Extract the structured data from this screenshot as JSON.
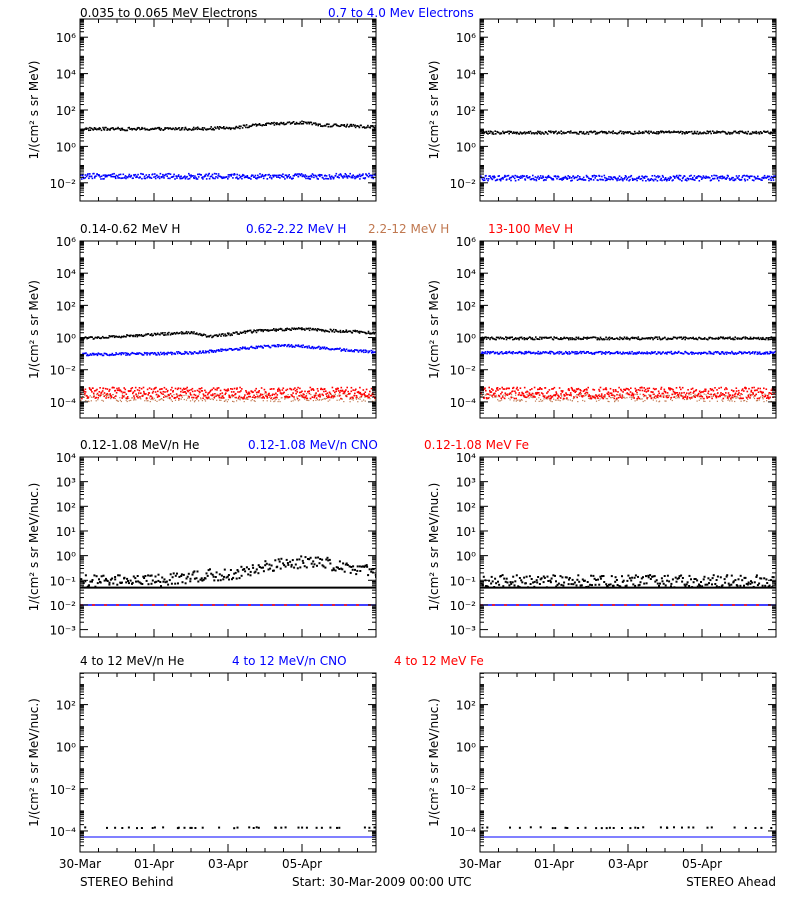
{
  "colors": {
    "black": "#000000",
    "blue": "#0000ff",
    "tan": "#c07850",
    "red": "#ff0000"
  },
  "footer": {
    "left_label": "STEREO Behind",
    "center_label": "Start: 30-Mar-2009 00:00 UTC",
    "right_label": "STEREO Ahead"
  },
  "x_tick_labels": [
    "30-Mar",
    "01-Apr",
    "03-Apr",
    "05-Apr"
  ],
  "chart_data": [
    {
      "type": "scatter",
      "row": 1,
      "spacecraft": "STEREO Behind",
      "ylabel": "1/(cm² s sr MeV)",
      "yscale": "log",
      "ylim_log10": [
        -3,
        7
      ],
      "yticks": [
        "10⁻²",
        "10⁰",
        "10²",
        "10⁴",
        "10⁶"
      ],
      "ytick_exp": [
        -2,
        0,
        2,
        4,
        6
      ],
      "legend": [
        {
          "name": "0.035 to 0.065 MeV Electrons",
          "color": "#000000"
        },
        {
          "name": "0.7 to 4.0 Mev Electrons",
          "color": "#0000ff"
        }
      ],
      "x_days": [
        0,
        8
      ],
      "x_tick_days": [
        0,
        2,
        4,
        6
      ],
      "series": [
        {
          "name": "0.035 to 0.065 MeV Electrons",
          "color": "#000000",
          "x": [
            0,
            1,
            2,
            3,
            4,
            4.5,
            5,
            5.5,
            6,
            6.5,
            7,
            8
          ],
          "log10_y": [
            1.0,
            1.0,
            1.0,
            1.02,
            1.05,
            1.15,
            1.25,
            1.3,
            1.35,
            1.2,
            1.2,
            1.1
          ]
        },
        {
          "name": "0.7 to 4.0 Mev Electrons",
          "color": "#0000ff",
          "x": [
            0,
            4,
            8
          ],
          "log10_y": [
            -1.6,
            -1.6,
            -1.6
          ]
        }
      ]
    },
    {
      "type": "scatter",
      "row": 1,
      "spacecraft": "STEREO Ahead",
      "ylabel": "1/(cm² s sr MeV)",
      "yscale": "log",
      "ylim_log10": [
        -3,
        7
      ],
      "yticks": [
        "10⁻²",
        "10⁰",
        "10²",
        "10⁴",
        "10⁶"
      ],
      "ytick_exp": [
        -2,
        0,
        2,
        4,
        6
      ],
      "x_days": [
        0,
        8
      ],
      "x_tick_days": [
        0,
        2,
        4,
        6
      ],
      "series": [
        {
          "name": "0.035 to 0.065 MeV Electrons",
          "color": "#000000",
          "x": [
            0,
            8
          ],
          "log10_y": [
            0.8,
            0.8
          ]
        },
        {
          "name": "0.7 to 4.0 Mev Electrons",
          "color": "#0000ff",
          "x": [
            0,
            8
          ],
          "log10_y": [
            -1.7,
            -1.7
          ]
        }
      ]
    },
    {
      "type": "scatter",
      "row": 2,
      "spacecraft": "STEREO Behind",
      "ylabel": "1/(cm² s sr MeV)",
      "yscale": "log",
      "ylim_log10": [
        -5,
        6
      ],
      "yticks": [
        "10⁻⁴",
        "10⁻²",
        "10⁰",
        "10²",
        "10⁴",
        "10⁶"
      ],
      "ytick_exp": [
        -4,
        -2,
        0,
        2,
        4,
        6
      ],
      "legend": [
        {
          "name": "0.14-0.62 MeV H",
          "color": "#000000"
        },
        {
          "name": "0.62-2.22 MeV H",
          "color": "#0000ff"
        },
        {
          "name": "2.2-12 MeV H",
          "color": "#c07850"
        },
        {
          "name": "13-100 MeV H",
          "color": "#ff0000"
        }
      ],
      "x_days": [
        0,
        8
      ],
      "x_tick_days": [
        0,
        2,
        4,
        6
      ],
      "series": [
        {
          "name": "0.14-0.62 MeV H",
          "color": "#000000",
          "x": [
            0,
            1,
            2,
            3,
            3.5,
            4,
            4.5,
            5,
            5.5,
            6,
            6.5,
            7,
            7.5,
            8
          ],
          "log10_y": [
            0.0,
            0.1,
            0.25,
            0.35,
            0.1,
            0.25,
            0.4,
            0.5,
            0.55,
            0.6,
            0.5,
            0.45,
            0.4,
            0.3
          ]
        },
        {
          "name": "0.62-2.22 MeV H",
          "color": "#0000ff",
          "x": [
            0,
            2,
            3,
            4,
            5,
            5.5,
            6,
            7,
            8
          ],
          "log10_y": [
            -1.0,
            -0.95,
            -0.9,
            -0.7,
            -0.5,
            -0.45,
            -0.5,
            -0.7,
            -0.85
          ]
        },
        {
          "name": "2.2-12 MeV H",
          "color": "#c07850",
          "x": [
            0,
            8
          ],
          "log10_y": [
            -3.7,
            -3.7
          ]
        },
        {
          "name": "13-100 MeV H",
          "color": "#ff0000",
          "x": [
            0,
            8
          ],
          "log10_y": [
            -3.4,
            -3.4
          ]
        }
      ]
    },
    {
      "type": "scatter",
      "row": 2,
      "spacecraft": "STEREO Ahead",
      "ylabel": "1/(cm² s sr MeV)",
      "yscale": "log",
      "ylim_log10": [
        -5,
        6
      ],
      "yticks": [
        "10⁻⁴",
        "10⁻²",
        "10⁰",
        "10²",
        "10⁴",
        "10⁶"
      ],
      "ytick_exp": [
        -4,
        -2,
        0,
        2,
        4,
        6
      ],
      "x_days": [
        0,
        8
      ],
      "x_tick_days": [
        0,
        2,
        4,
        6
      ],
      "series": [
        {
          "name": "0.14-0.62 MeV H",
          "color": "#000000",
          "x": [
            0,
            8
          ],
          "log10_y": [
            0.0,
            0.0
          ]
        },
        {
          "name": "0.62-2.22 MeV H",
          "color": "#0000ff",
          "x": [
            0,
            8
          ],
          "log10_y": [
            -0.9,
            -0.9
          ]
        },
        {
          "name": "2.2-12 MeV H",
          "color": "#c07850",
          "x": [
            0,
            8
          ],
          "log10_y": [
            -3.7,
            -3.7
          ]
        },
        {
          "name": "13-100 MeV H",
          "color": "#ff0000",
          "x": [
            0,
            8
          ],
          "log10_y": [
            -3.4,
            -3.4
          ]
        }
      ]
    },
    {
      "type": "scatter",
      "row": 3,
      "spacecraft": "STEREO Behind",
      "ylabel": "1/(cm² s sr MeV/nuc.)",
      "yscale": "log",
      "ylim_log10": [
        -3.3,
        4
      ],
      "yticks": [
        "10⁻³",
        "10⁻²",
        "10⁻¹",
        "10⁰",
        "10¹",
        "10²",
        "10³",
        "10⁴"
      ],
      "ytick_exp": [
        -3,
        -2,
        -1,
        0,
        1,
        2,
        3,
        4
      ],
      "legend": [
        {
          "name": "0.12-1.08 MeV/n He",
          "color": "#000000"
        },
        {
          "name": "0.12-1.08 MeV/n CNO",
          "color": "#0000ff"
        },
        {
          "name": "0.12-1.08 MeV Fe",
          "color": "#ff0000"
        }
      ],
      "x_days": [
        0,
        8
      ],
      "x_tick_days": [
        0,
        2,
        4,
        6
      ],
      "series": [
        {
          "name": "0.12-1.08 MeV/n He",
          "color": "#000000",
          "x": [
            0,
            2,
            3,
            4,
            4.5,
            5,
            5.5,
            6,
            6.5,
            7,
            7.5,
            8
          ],
          "log10_y": [
            -1.0,
            -1.0,
            -0.8,
            -0.7,
            -0.6,
            -0.4,
            -0.3,
            -0.2,
            -0.25,
            -0.35,
            -0.5,
            -0.7
          ]
        },
        {
          "name": "He background",
          "color": "#000000",
          "x": [
            0,
            8
          ],
          "log10_y": [
            -1.3,
            -1.3
          ]
        },
        {
          "name": "0.12-1.08 MeV/n CNO",
          "color": "#0000ff",
          "x": [
            0,
            8
          ],
          "log10_y": [
            -2.0,
            -2.0
          ]
        },
        {
          "name": "0.12-1.08 MeV Fe",
          "color": "#ff0000",
          "x": [
            0,
            8
          ],
          "log10_y": [
            -2.0,
            -2.0
          ]
        }
      ]
    },
    {
      "type": "scatter",
      "row": 3,
      "spacecraft": "STEREO Ahead",
      "ylabel": "1/(cm² s sr MeV/nuc.)",
      "yscale": "log",
      "ylim_log10": [
        -3.3,
        4
      ],
      "yticks": [
        "10⁻³",
        "10⁻²",
        "10⁻¹",
        "10⁰",
        "10¹",
        "10²",
        "10³",
        "10⁴"
      ],
      "ytick_exp": [
        -3,
        -2,
        -1,
        0,
        1,
        2,
        3,
        4
      ],
      "x_days": [
        0,
        8
      ],
      "x_tick_days": [
        0,
        2,
        4,
        6
      ],
      "series": [
        {
          "name": "0.12-1.08 MeV/n He",
          "color": "#000000",
          "x": [
            0,
            8
          ],
          "log10_y": [
            -1.0,
            -1.0
          ]
        },
        {
          "name": "He background",
          "color": "#000000",
          "x": [
            0,
            8
          ],
          "log10_y": [
            -1.3,
            -1.3
          ]
        },
        {
          "name": "0.12-1.08 MeV/n CNO",
          "color": "#0000ff",
          "x": [
            0,
            8
          ],
          "log10_y": [
            -2.0,
            -2.0
          ]
        },
        {
          "name": "0.12-1.08 MeV Fe",
          "color": "#ff0000",
          "x": [
            0,
            8
          ],
          "log10_y": [
            -2.0,
            -2.0
          ]
        }
      ]
    },
    {
      "type": "scatter",
      "row": 4,
      "spacecraft": "STEREO Behind",
      "ylabel": "1/(cm² s sr MeV/nuc.)",
      "yscale": "log",
      "ylim_log10": [
        -5,
        3.5
      ],
      "yticks": [
        "10⁻⁴",
        "10⁻²",
        "10⁰",
        "10²"
      ],
      "ytick_exp": [
        -4,
        -2,
        0,
        2
      ],
      "legend": [
        {
          "name": "4 to 12 MeV/n He",
          "color": "#000000"
        },
        {
          "name": "4 to 12 MeV/n CNO",
          "color": "#0000ff"
        },
        {
          "name": "4 to 12 MeV Fe",
          "color": "#ff0000"
        }
      ],
      "x_days": [
        0,
        8
      ],
      "x_tick_days": [
        0,
        2,
        4,
        6
      ],
      "series": [
        {
          "name": "4 to 12 MeV/n He",
          "color": "#000000",
          "x": [
            0,
            8
          ],
          "log10_y": [
            -3.8,
            -3.8
          ]
        },
        {
          "name": "4 to 12 MeV/n CNO",
          "color": "#0000ff",
          "x": [
            0,
            8
          ],
          "log10_y": [
            -4.0,
            -4.0
          ]
        }
      ]
    },
    {
      "type": "scatter",
      "row": 4,
      "spacecraft": "STEREO Ahead",
      "ylabel": "1/(cm² s sr MeV/nuc.)",
      "yscale": "log",
      "ylim_log10": [
        -5,
        3.5
      ],
      "yticks": [
        "10⁻⁴",
        "10⁻²",
        "10⁰",
        "10²"
      ],
      "ytick_exp": [
        -4,
        -2,
        0,
        2
      ],
      "x_days": [
        0,
        8
      ],
      "x_tick_days": [
        0,
        2,
        4,
        6
      ],
      "series": [
        {
          "name": "4 to 12 MeV/n He",
          "color": "#000000",
          "x": [
            0,
            8
          ],
          "log10_y": [
            -3.8,
            -3.8
          ]
        },
        {
          "name": "4 to 12 MeV/n CNO",
          "color": "#0000ff",
          "x": [
            0,
            8
          ],
          "log10_y": [
            -4.0,
            -4.0
          ]
        }
      ]
    }
  ]
}
